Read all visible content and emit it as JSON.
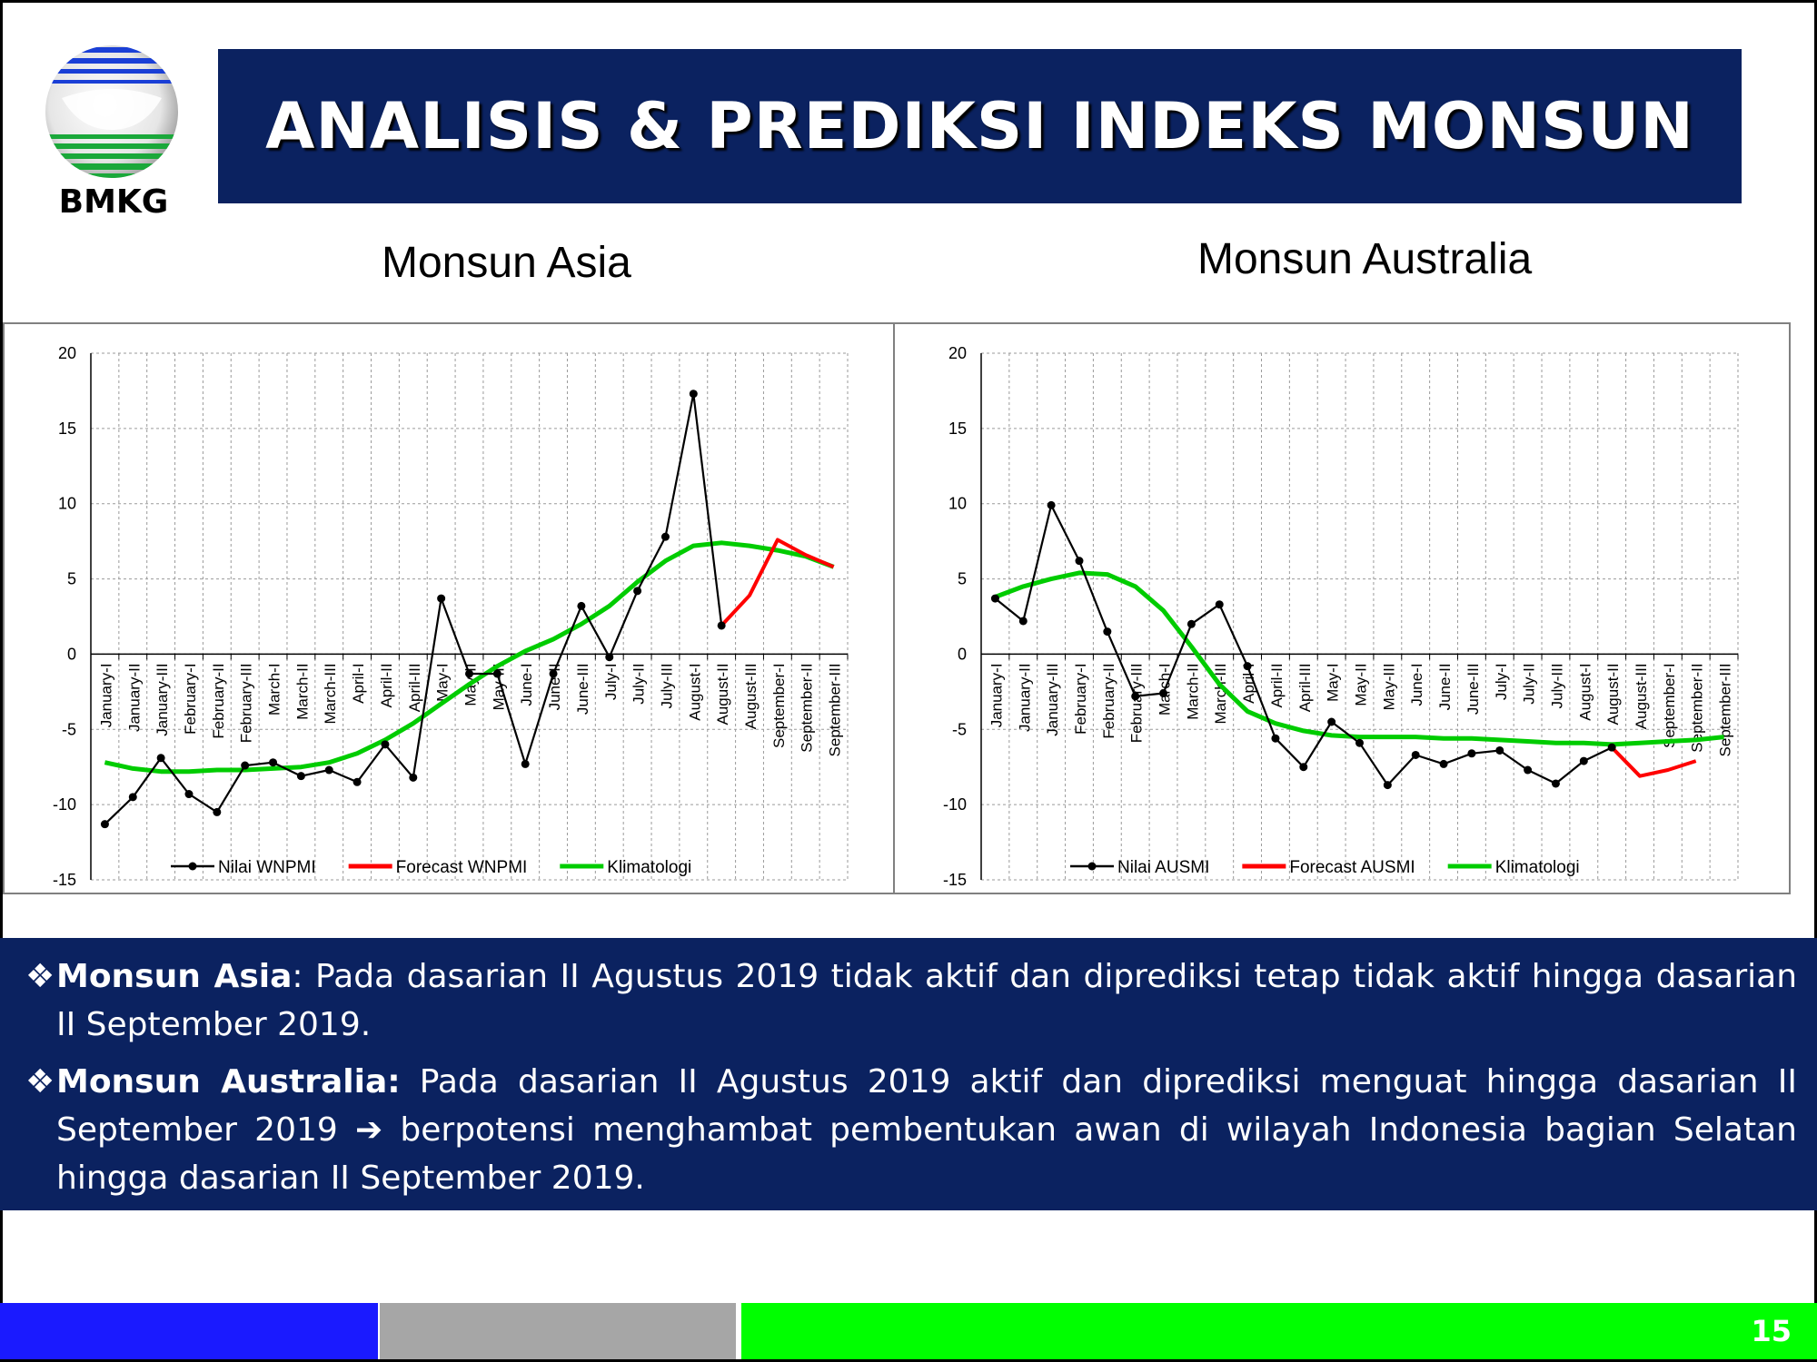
{
  "header": {
    "logo_text": "BMKG",
    "title": "ANALISIS & PREDIKSI INDEKS MONSUN"
  },
  "charts_titles": {
    "left": "Monsun Asia",
    "right": "Monsun Australia"
  },
  "chart_data": [
    {
      "type": "line",
      "title": "Monsun Asia",
      "categories": [
        "January-I",
        "January-II",
        "January-III",
        "February-I",
        "February-II",
        "February-III",
        "March-I",
        "March-II",
        "March-III",
        "April-I",
        "April-II",
        "April-III",
        "May-I",
        "May-II",
        "May-III",
        "June-I",
        "June-II",
        "June-III",
        "July-I",
        "July-II",
        "July-III",
        "August-I",
        "August-II",
        "August-III",
        "September-I",
        "September-II",
        "September-III"
      ],
      "ylim": [
        -15,
        20
      ],
      "yticks": [
        20,
        15,
        10,
        5,
        0,
        -5,
        -10,
        -15
      ],
      "grid": true,
      "legend_position": "bottom",
      "series": [
        {
          "name": "Nilai WNPMI",
          "color": "#000000",
          "markers": true,
          "values": [
            -11.3,
            -9.5,
            -6.9,
            -9.3,
            -10.5,
            -7.4,
            -7.2,
            -8.1,
            -7.7,
            -8.5,
            -6,
            -8.2,
            3.7,
            -1.3,
            -1.3,
            -7.3,
            -1.3,
            3.2,
            -0.2,
            4.2,
            7.8,
            17.3,
            1.9,
            null,
            null,
            null,
            null
          ]
        },
        {
          "name": "Forecast WNPMI",
          "color": "#ff0000",
          "markers": false,
          "values": [
            null,
            null,
            null,
            null,
            null,
            null,
            null,
            null,
            null,
            null,
            null,
            null,
            null,
            null,
            null,
            null,
            null,
            null,
            null,
            null,
            null,
            null,
            1.9,
            3.9,
            7.6,
            6.6,
            5.8
          ]
        },
        {
          "name": "Klimatologi",
          "color": "#00cc00",
          "markers": false,
          "values": [
            -7.2,
            -7.6,
            -7.8,
            -7.8,
            -7.7,
            -7.7,
            -7.6,
            -7.5,
            -7.2,
            -6.6,
            -5.7,
            -4.6,
            -3.3,
            -2,
            -0.8,
            0.2,
            1,
            2,
            3.2,
            4.8,
            6.2,
            7.2,
            7.4,
            7.2,
            6.9,
            6.5,
            5.8
          ]
        }
      ]
    },
    {
      "type": "line",
      "title": "Monsun Australia",
      "categories": [
        "January-I",
        "January-II",
        "January-III",
        "February-I",
        "February-II",
        "February-III",
        "March-I",
        "March-II",
        "March-III",
        "April-I",
        "April-II",
        "April-III",
        "May-I",
        "May-II",
        "May-III",
        "June-I",
        "June-II",
        "June-III",
        "July-I",
        "July-II",
        "July-III",
        "August-I",
        "August-II",
        "August-III",
        "September-I",
        "September-II",
        "September-III"
      ],
      "ylim": [
        -15,
        20
      ],
      "yticks": [
        20,
        15,
        10,
        5,
        0,
        -5,
        -10,
        -15
      ],
      "grid": true,
      "legend_position": "bottom",
      "series": [
        {
          "name": "Nilai AUSMI",
          "color": "#000000",
          "markers": true,
          "values": [
            3.7,
            2.2,
            9.9,
            6.2,
            1.5,
            -2.8,
            -2.6,
            2,
            3.3,
            -0.8,
            -5.6,
            -7.5,
            -4.5,
            -5.9,
            -8.7,
            -6.7,
            -7.3,
            -6.6,
            -6.4,
            -7.7,
            -8.6,
            -7.1,
            -6.2,
            null,
            null,
            null,
            null
          ]
        },
        {
          "name": "Forecast AUSMI",
          "color": "#ff0000",
          "markers": false,
          "values": [
            null,
            null,
            null,
            null,
            null,
            null,
            null,
            null,
            null,
            null,
            null,
            null,
            null,
            null,
            null,
            null,
            null,
            null,
            null,
            null,
            null,
            null,
            -6.2,
            -8.1,
            -7.7,
            -7.1,
            null
          ]
        },
        {
          "name": "Klimatologi",
          "color": "#00cc00",
          "markers": false,
          "values": [
            3.8,
            4.5,
            5,
            5.4,
            5.3,
            4.5,
            2.9,
            0.5,
            -2,
            -3.8,
            -4.6,
            -5.1,
            -5.4,
            -5.5,
            -5.5,
            -5.5,
            -5.6,
            -5.6,
            -5.7,
            -5.8,
            -5.9,
            -5.9,
            -6,
            -5.9,
            -5.8,
            -5.7,
            -5.5
          ]
        }
      ]
    }
  ],
  "info": {
    "items": [
      {
        "bullet": "❖",
        "label": "Monsun Asia",
        "text": ": Pada dasarian II Agustus 2019 tidak aktif dan diprediksi tetap tidak aktif hingga dasarian II September 2019."
      },
      {
        "bullet": "❖",
        "label": "Monsun Australia:",
        "text_a": " Pada dasarian II Agustus 2019 aktif dan diprediksi menguat hingga dasarian II September 2019 ",
        "arrow": "➔",
        "text_b": " berpotensi menghambat pembentukan awan di wilayah Indonesia bagian Selatan hingga dasarian II September 2019."
      }
    ]
  },
  "footer": {
    "colors": [
      "#1a1aff",
      "#a6a6a6",
      "#00ff00"
    ],
    "page_number": "15"
  }
}
